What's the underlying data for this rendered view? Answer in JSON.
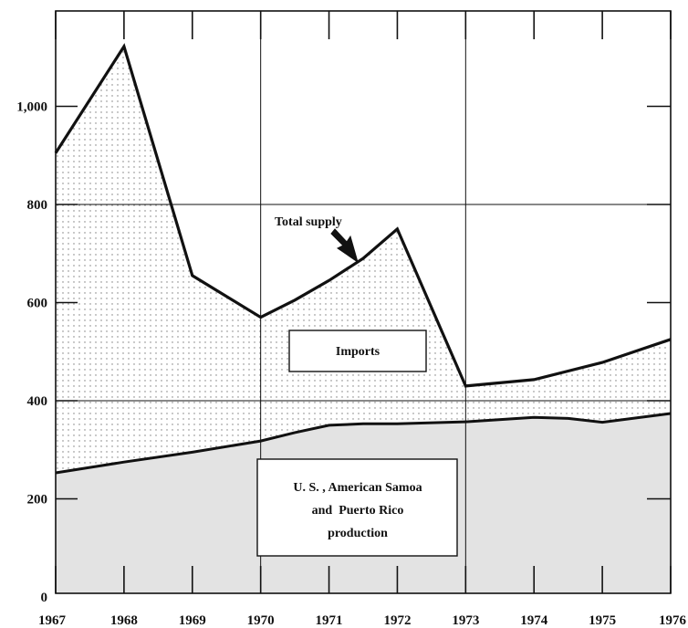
{
  "chart_data": {
    "type": "area",
    "title": "",
    "xlabel": "",
    "ylabel": "",
    "x": [
      1967,
      1968,
      1969,
      1970,
      1971,
      1972,
      1973,
      1974,
      1975,
      1976
    ],
    "xlim": [
      1967,
      1976
    ],
    "ylim": [
      0,
      1155
    ],
    "y_ticks": [
      0,
      200,
      400,
      600,
      800,
      1000
    ],
    "y_tick_labels": [
      "0",
      "200",
      "400",
      "600",
      "800",
      "1,000"
    ],
    "x_tick_labels": [
      "1967",
      "1968",
      "1969",
      "1970",
      "1971",
      "1972",
      "1973",
      "1974",
      "1975",
      "1976"
    ],
    "grid": true,
    "series": [
      {
        "name": "U. S. , American Samoa and Puerto Rico production",
        "x": [
          1967,
          1968,
          1969,
          1970,
          1970.5,
          1971,
          1971.5,
          1972,
          1973,
          1974,
          1974.5,
          1975,
          1976
        ],
        "values": [
          253,
          275,
          295,
          318,
          335,
          350,
          353,
          353,
          357,
          366,
          364,
          356,
          374
        ]
      },
      {
        "name": "Total supply",
        "x": [
          1967,
          1968,
          1969,
          1970,
          1970.5,
          1971,
          1971.5,
          1972,
          1973,
          1974,
          1975,
          1976
        ],
        "values": [
          905,
          1122,
          655,
          570,
          605,
          645,
          690,
          750,
          430,
          443,
          478,
          525
        ]
      }
    ],
    "annotations": {
      "total_supply": "Total supply",
      "imports": "Imports",
      "production_lines": [
        "U. S. , American Samoa",
        "and  Puerto Rico",
        "production"
      ]
    }
  },
  "colors": {
    "ink": "#111111",
    "production_fill": "#e3e3e3",
    "imports_dot": "#7a7a7a"
  }
}
